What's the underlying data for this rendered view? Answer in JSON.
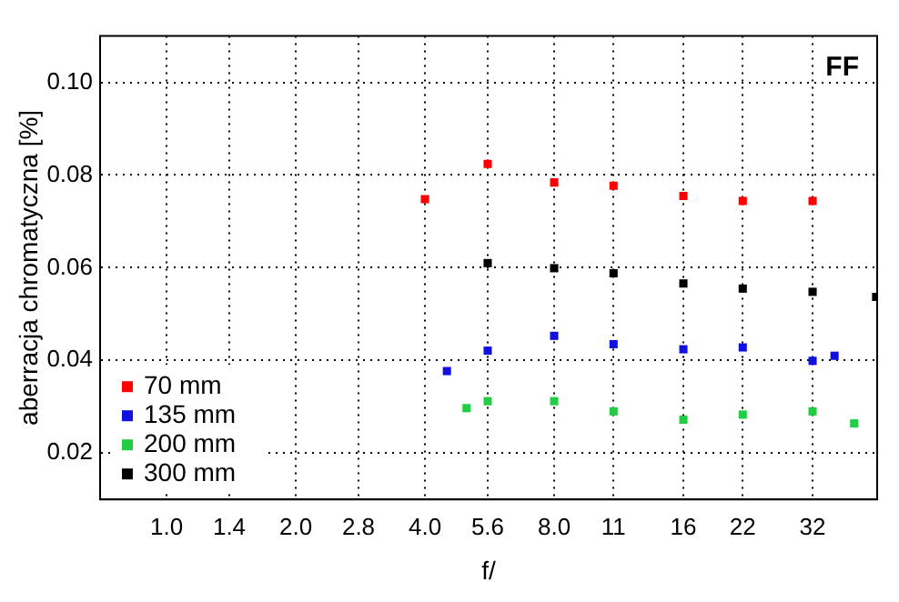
{
  "chart_data": {
    "type": "scatter",
    "xlabel": "f/",
    "ylabel": "aberracja chromatyczna [%]",
    "annotations": [
      "FF"
    ],
    "log": "x",
    "xlim": [
      0.707,
      45.25
    ],
    "ylim": [
      0.01,
      0.11
    ],
    "xticks": [
      {
        "value": 1,
        "label": "1.0"
      },
      1.4,
      {
        "value": 2,
        "label": "2.0"
      },
      2.8,
      {
        "value": 4,
        "label": "4.0"
      },
      5.6,
      {
        "value": 8,
        "label": "8.0"
      },
      11,
      16,
      22,
      32
    ],
    "yticks": [
      {
        "value": 0.02,
        "label": "0.02"
      },
      {
        "value": 0.04,
        "label": "0.04"
      },
      {
        "value": 0.06,
        "label": "0.06"
      },
      {
        "value": 0.08,
        "label": "0.08"
      },
      {
        "value": 0.1,
        "label": "0.10"
      }
    ],
    "grid": true,
    "legend": "bottom left",
    "marker": "square",
    "series": [
      {
        "name": "70 mm",
        "color": "#ff0000",
        "x": [
          4,
          5.6,
          8,
          11,
          16,
          22,
          32
        ],
        "values": [
          0.0748,
          0.0824,
          0.0784,
          0.0777,
          0.0755,
          0.0744,
          0.0744
        ]
      },
      {
        "name": "135 mm",
        "color": "#1010e0",
        "x": [
          4.5,
          5.6,
          8,
          11,
          16,
          22,
          32,
          36
        ],
        "values": [
          0.0377,
          0.0421,
          0.0453,
          0.0435,
          0.0424,
          0.0428,
          0.0399,
          0.041
        ]
      },
      {
        "name": "200 mm",
        "color": "#22cc44",
        "x": [
          5,
          5.6,
          8,
          11,
          16,
          22,
          32,
          40
        ],
        "values": [
          0.0297,
          0.0312,
          0.0312,
          0.029,
          0.0272,
          0.0283,
          0.029,
          0.0264
        ]
      },
      {
        "name": "300 mm",
        "color": "#000000",
        "x": [
          5.6,
          8,
          11,
          16,
          22,
          32,
          45
        ],
        "values": [
          0.061,
          0.0599,
          0.0588,
          0.0566,
          0.0555,
          0.0548,
          0.0537
        ]
      }
    ]
  }
}
